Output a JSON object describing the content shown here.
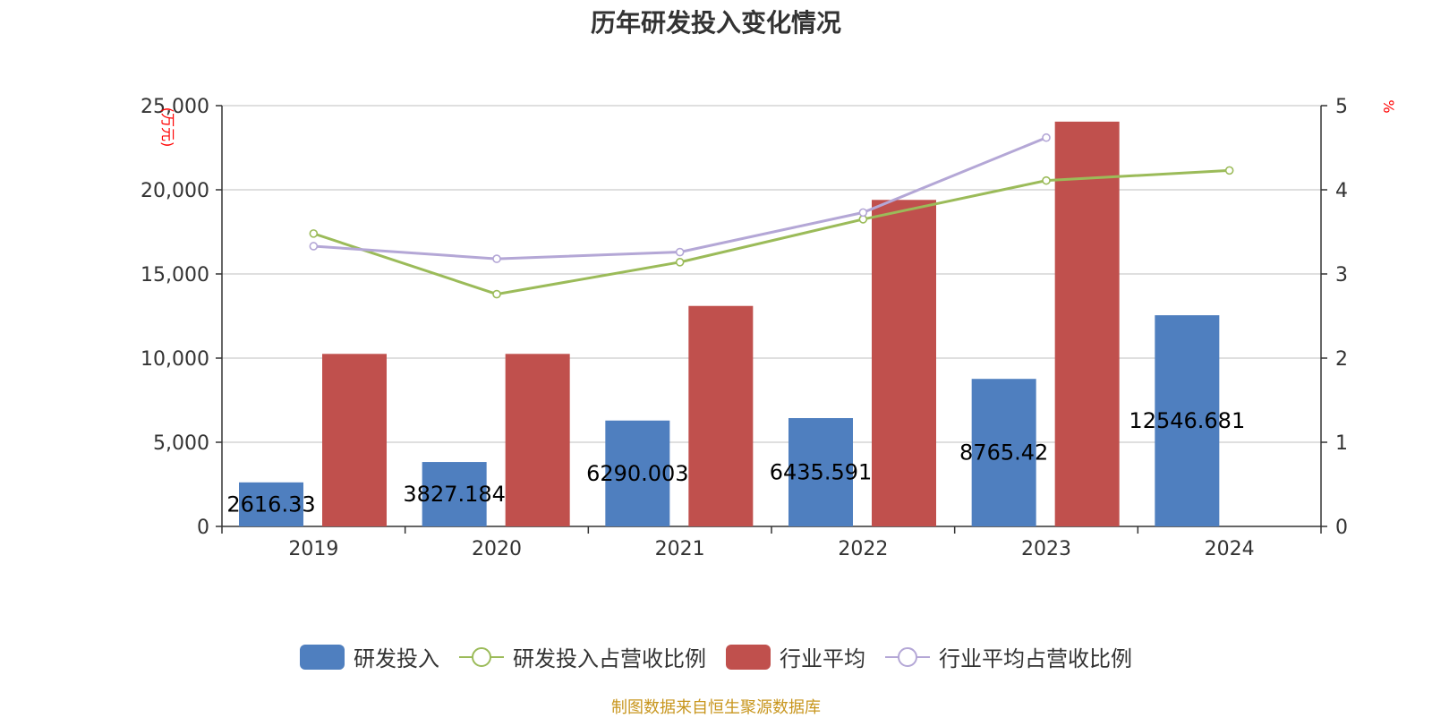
{
  "chart_data": {
    "type": "bar",
    "title": "历年研发投入变化情况",
    "categories": [
      "2019",
      "2020",
      "2021",
      "2022",
      "2023",
      "2024"
    ],
    "y_left": {
      "unit": "(万元)",
      "ticks": [
        "0",
        "5,000",
        "10,000",
        "15,000",
        "20,000",
        "25,000"
      ],
      "ylim": [
        0,
        25000
      ]
    },
    "y_right": {
      "unit": "%",
      "ticks": [
        "0",
        "1",
        "2",
        "3",
        "4",
        "5"
      ],
      "ylim": [
        0,
        5
      ]
    },
    "series": [
      {
        "name": "研发投入",
        "kind": "bar",
        "axis": "left",
        "color": "#4f7fbf",
        "values": [
          2616.33,
          3827.184,
          6290.003,
          6435.591,
          8765.42,
          12546.681
        ],
        "labels": [
          "2616.33",
          "3827.184",
          "6290.003",
          "6435.591",
          "8765.42",
          "12546.681"
        ]
      },
      {
        "name": "研发投入占营收比例",
        "kind": "line",
        "axis": "right",
        "color": "#9bbb59",
        "values": [
          3.48,
          2.76,
          3.14,
          3.65,
          4.11,
          4.23
        ]
      },
      {
        "name": "行业平均",
        "kind": "bar",
        "axis": "left",
        "color": "#c0504d",
        "values": [
          10250,
          10250,
          13100,
          19400,
          24050,
          null
        ]
      },
      {
        "name": "行业平均占营收比例",
        "kind": "line",
        "axis": "right",
        "color": "#b4a7d6",
        "values": [
          3.33,
          3.18,
          3.26,
          3.73,
          4.62,
          null
        ]
      }
    ],
    "grid": true,
    "legend_position": "bottom"
  },
  "legend": {
    "items": [
      {
        "name": "研发投入",
        "kind": "bar",
        "color": "#4f7fbf"
      },
      {
        "name": "研发投入占营收比例",
        "kind": "line",
        "color": "#9bbb59"
      },
      {
        "name": "行业平均",
        "kind": "bar",
        "color": "#c0504d"
      },
      {
        "name": "行业平均占营收比例",
        "kind": "line",
        "color": "#b4a7d6"
      }
    ]
  },
  "source_note": "制图数据来自恒生聚源数据库",
  "colors": {
    "axis_unit": "#ff0000",
    "grid": "#cccccc",
    "axis": "#333333"
  }
}
